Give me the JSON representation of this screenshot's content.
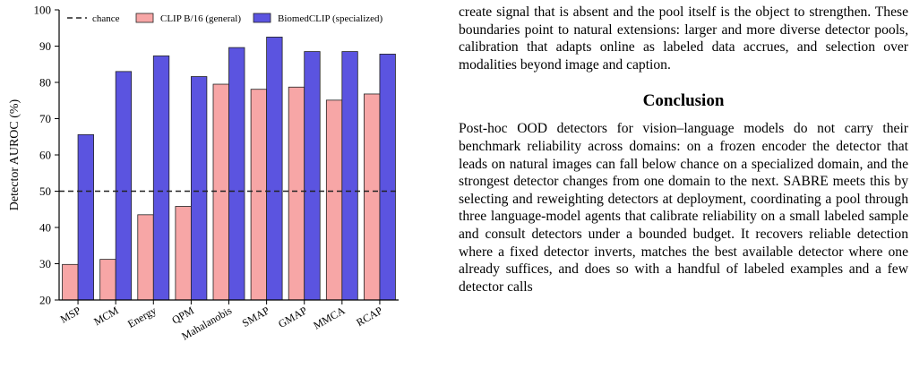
{
  "chart_data": {
    "type": "bar",
    "categories": [
      "MSP",
      "MCM",
      "Energy",
      "QPM",
      "Mahalanobis",
      "SMAP",
      "GMAP",
      "MMCA",
      "RCAP"
    ],
    "series": [
      {
        "name": "CLIP B/16 (general)",
        "color": "#f7a6a6",
        "values": [
          29.8,
          31.2,
          43.5,
          45.8,
          79.5,
          78.1,
          78.7,
          75.1,
          76.8
        ]
      },
      {
        "name": "BiomedCLIP (specialized)",
        "color": "#5b54e0",
        "values": [
          65.6,
          83.0,
          87.3,
          81.6,
          89.6,
          92.5,
          88.5,
          88.5,
          87.8
        ]
      }
    ],
    "reference_line": {
      "name": "chance",
      "value": 50
    },
    "ylabel": "Detector AUROC (%)",
    "xlabel": "",
    "ylim": [
      20,
      100
    ],
    "yticks": [
      20,
      30,
      40,
      50,
      60,
      70,
      80,
      90,
      100
    ],
    "legend_placement": "top",
    "grid": false
  },
  "text": {
    "para1": "create signal that is absent and the pool itself is the object to strengthen. These boundaries point to natural extensions: larger and more diverse detector pools, calibration that adapts online as labeled data accrues, and selection over modalities beyond image and caption.",
    "heading": "Conclusion",
    "para2": "Post-hoc OOD detectors for vision–language models do not carry their benchmark reliability across domains: on a frozen encoder the detector that leads on natural images can fall below chance on a specialized domain, and the strongest de­tector changes from one domain to the next. SABRE meets this by selecting and reweighting detectors at deployment, coordinating a pool through three language-model agents that calibrate reliability on a small labeled sample and con­sult detectors under a bounded budget. It recovers reliable detection where a fixed detector inverts, matches the best available detector where one already suffices, and does so with a handful of labeled examples and a few detector calls"
  }
}
